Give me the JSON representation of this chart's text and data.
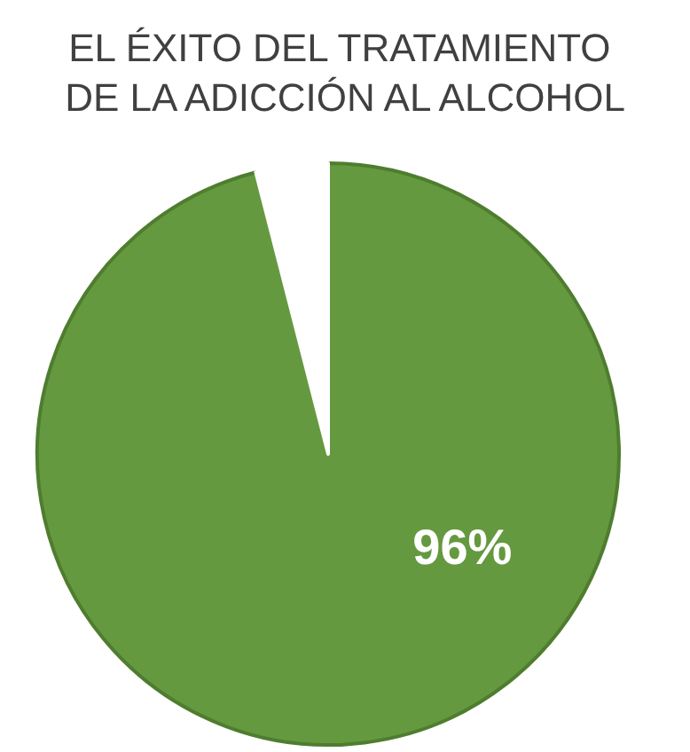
{
  "chart_data": {
    "type": "pie",
    "title": "EL ÉXITO DEL TRATAMIENTO DE LA ADICCIÓN AL ALCOHOL",
    "categories": [
      null,
      null
    ],
    "values": [
      96,
      4
    ],
    "colors": [
      "#65993f",
      "#ffffff"
    ],
    "value_labels": [
      "96%",
      null
    ]
  }
}
